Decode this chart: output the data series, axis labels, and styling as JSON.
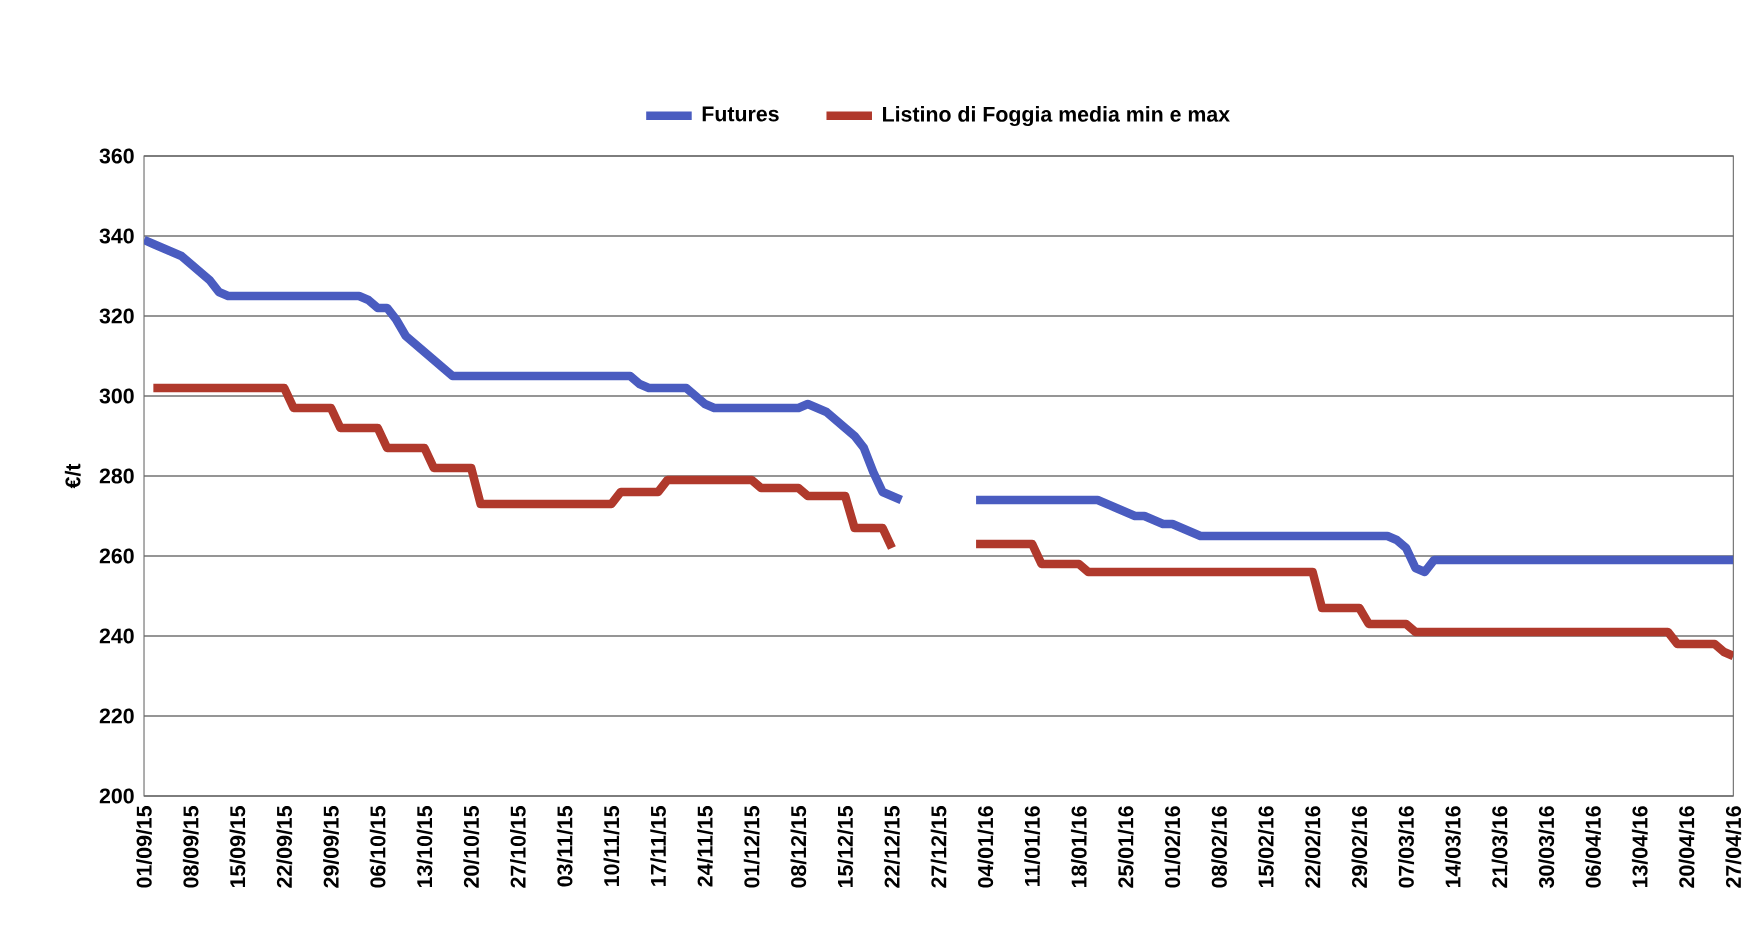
{
  "chart_data": {
    "type": "line",
    "ylabel": "€/t",
    "ylim": [
      200,
      360
    ],
    "yticks": [
      200,
      220,
      240,
      260,
      280,
      300,
      320,
      340,
      360
    ],
    "categories": [
      "01/09/15",
      null,
      null,
      null,
      null,
      "08/09/15",
      null,
      null,
      null,
      null,
      "15/09/15",
      null,
      null,
      null,
      null,
      "22/09/15",
      null,
      null,
      null,
      null,
      "29/09/15",
      null,
      null,
      null,
      null,
      "06/10/15",
      null,
      null,
      null,
      null,
      "13/10/15",
      null,
      null,
      null,
      null,
      "20/10/15",
      null,
      null,
      null,
      null,
      "27/10/15",
      null,
      null,
      null,
      null,
      "03/11/15",
      null,
      null,
      null,
      null,
      "10/11/15",
      null,
      null,
      null,
      null,
      "17/11/15",
      null,
      null,
      null,
      null,
      "24/11/15",
      null,
      null,
      null,
      null,
      "01/12/15",
      null,
      null,
      null,
      null,
      "08/12/15",
      null,
      null,
      null,
      null,
      "15/12/15",
      null,
      null,
      null,
      null,
      "22/12/15",
      null,
      null,
      null,
      null,
      "27/12/15",
      null,
      null,
      null,
      null,
      "04/01/16",
      null,
      null,
      null,
      null,
      "11/01/16",
      null,
      null,
      null,
      null,
      "18/01/16",
      null,
      null,
      null,
      null,
      "25/01/16",
      null,
      null,
      null,
      null,
      "01/02/16",
      null,
      null,
      null,
      null,
      "08/02/16",
      null,
      null,
      null,
      null,
      "15/02/16",
      null,
      null,
      null,
      null,
      "22/02/16",
      null,
      null,
      null,
      null,
      "29/02/16",
      null,
      null,
      null,
      null,
      "07/03/16",
      null,
      null,
      null,
      null,
      "14/03/16",
      null,
      null,
      null,
      null,
      "21/03/16",
      null,
      null,
      null,
      null,
      "30/03/16",
      null,
      null,
      null,
      null,
      "06/04/16",
      null,
      null,
      null,
      null,
      "13/04/16",
      null,
      null,
      null,
      null,
      "20/04/16",
      null,
      null,
      null,
      null,
      "27/04/16"
    ],
    "grid": "y",
    "legend": "top",
    "marker": "none",
    "line_style": "solid",
    "series": [
      {
        "name": "Futures",
        "color": "#4a5cc0",
        "values": [
          339,
          338,
          337,
          336,
          335,
          333,
          331,
          329,
          326,
          325,
          325,
          325,
          325,
          325,
          325,
          325,
          325,
          325,
          325,
          325,
          325,
          325,
          325,
          325,
          324,
          322,
          322,
          319,
          315,
          313,
          311,
          309,
          307,
          305,
          305,
          305,
          305,
          305,
          305,
          305,
          305,
          305,
          305,
          305,
          305,
          305,
          305,
          305,
          305,
          305,
          305,
          305,
          305,
          303,
          302,
          302,
          302,
          302,
          302,
          300,
          298,
          297,
          297,
          297,
          297,
          297,
          297,
          297,
          297,
          297,
          297,
          298,
          297,
          296,
          294,
          292,
          290,
          287,
          281,
          276,
          275,
          274,
          null,
          null,
          null,
          null,
          null,
          null,
          null,
          274,
          274,
          274,
          274,
          274,
          274,
          274,
          274,
          274,
          274,
          274,
          274,
          274,
          274,
          273,
          272,
          271,
          270,
          270,
          269,
          268,
          268,
          267,
          266,
          265,
          265,
          265,
          265,
          265,
          265,
          265,
          265,
          265,
          265,
          265,
          265,
          265,
          265,
          265,
          265,
          265,
          265,
          265,
          265,
          265,
          264,
          262,
          257,
          256,
          259,
          259,
          259,
          259,
          259,
          259,
          259,
          259,
          259,
          259,
          259,
          259,
          259,
          259,
          259,
          259,
          259,
          259,
          259,
          259,
          259,
          259,
          259,
          259,
          259,
          259,
          259,
          259,
          259,
          259,
          259,
          259,
          259
        ]
      },
      {
        "name": "Listino di Foggia media min e max",
        "color": "#b0392c",
        "values": [
          null,
          302,
          302,
          302,
          302,
          302,
          302,
          302,
          302,
          302,
          302,
          302,
          302,
          302,
          302,
          302,
          297,
          297,
          297,
          297,
          297,
          292,
          292,
          292,
          292,
          292,
          287,
          287,
          287,
          287,
          287,
          282,
          282,
          282,
          282,
          282,
          273,
          273,
          273,
          273,
          273,
          273,
          273,
          273,
          273,
          273,
          273,
          273,
          273,
          273,
          273,
          276,
          276,
          276,
          276,
          276,
          279,
          279,
          279,
          279,
          279,
          279,
          279,
          279,
          279,
          279,
          277,
          277,
          277,
          277,
          277,
          275,
          275,
          275,
          275,
          275,
          267,
          267,
          267,
          267,
          262,
          null,
          null,
          null,
          null,
          null,
          null,
          null,
          null,
          263,
          263,
          263,
          263,
          263,
          263,
          263,
          258,
          258,
          258,
          258,
          258,
          256,
          256,
          256,
          256,
          256,
          256,
          256,
          256,
          256,
          256,
          256,
          256,
          256,
          256,
          256,
          256,
          256,
          256,
          256,
          256,
          256,
          256,
          256,
          256,
          256,
          247,
          247,
          247,
          247,
          247,
          243,
          243,
          243,
          243,
          243,
          241,
          241,
          241,
          241,
          241,
          241,
          241,
          241,
          241,
          241,
          241,
          241,
          241,
          241,
          241,
          241,
          241,
          241,
          241,
          241,
          241,
          241,
          241,
          241,
          241,
          241,
          241,
          241,
          238,
          238,
          238,
          238,
          238,
          236,
          235
        ]
      }
    ]
  }
}
